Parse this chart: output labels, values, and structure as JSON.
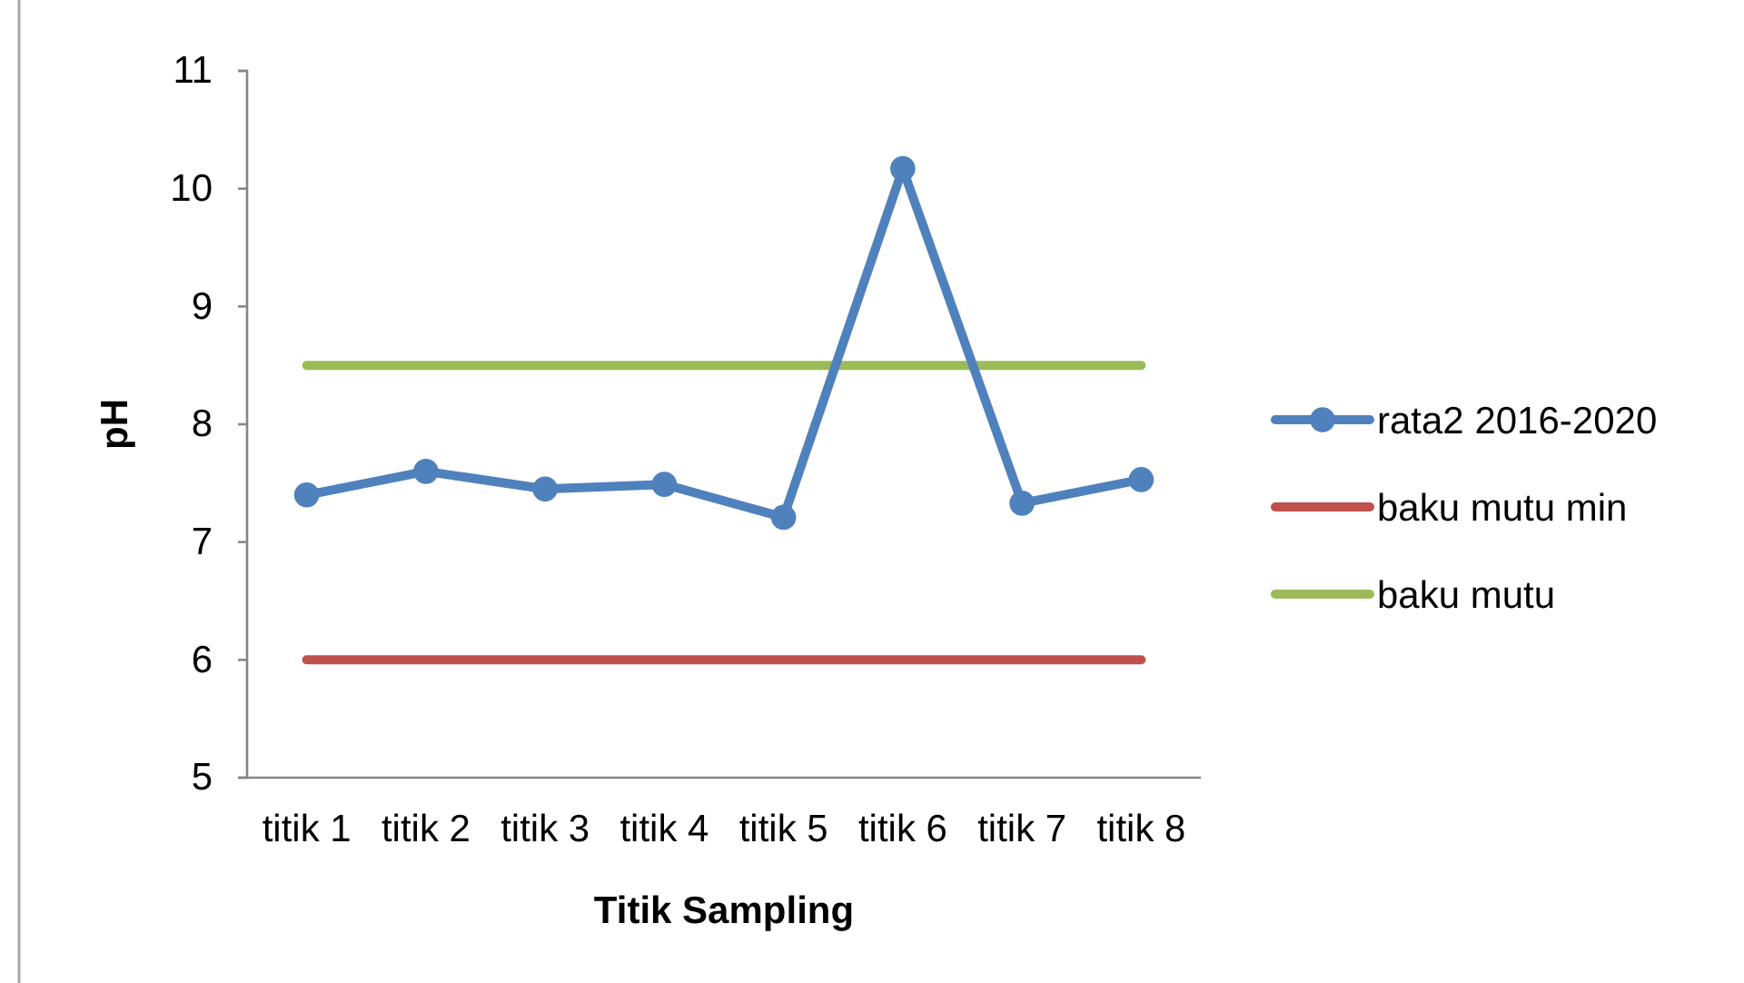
{
  "chart_data": {
    "type": "line",
    "xlabel": "Titik Sampling",
    "ylabel": "pH",
    "categories": [
      "titik 1",
      "titik 2",
      "titik 3",
      "titik 4",
      "titik 5",
      "titik 6",
      "titik 7",
      "titik 8"
    ],
    "series": [
      {
        "name": "rata2 2016-2020",
        "color": "#4f81bd",
        "marker": "circle",
        "values": [
          7.4,
          7.6,
          7.45,
          7.49,
          7.21,
          10.17,
          7.33,
          7.53
        ]
      },
      {
        "name": "baku mutu min",
        "color": "#c0504d",
        "marker": "none",
        "values": [
          6,
          6,
          6,
          6,
          6,
          6,
          6,
          6
        ]
      },
      {
        "name": "baku mutu",
        "color": "#9bbb59",
        "marker": "none",
        "values": [
          8.5,
          8.5,
          8.5,
          8.5,
          8.5,
          8.5,
          8.5,
          8.5
        ]
      }
    ],
    "ylim": [
      5,
      11
    ],
    "yticks": [
      5,
      6,
      7,
      8,
      9,
      10,
      11
    ],
    "legend": "right",
    "line_style": "solid"
  }
}
